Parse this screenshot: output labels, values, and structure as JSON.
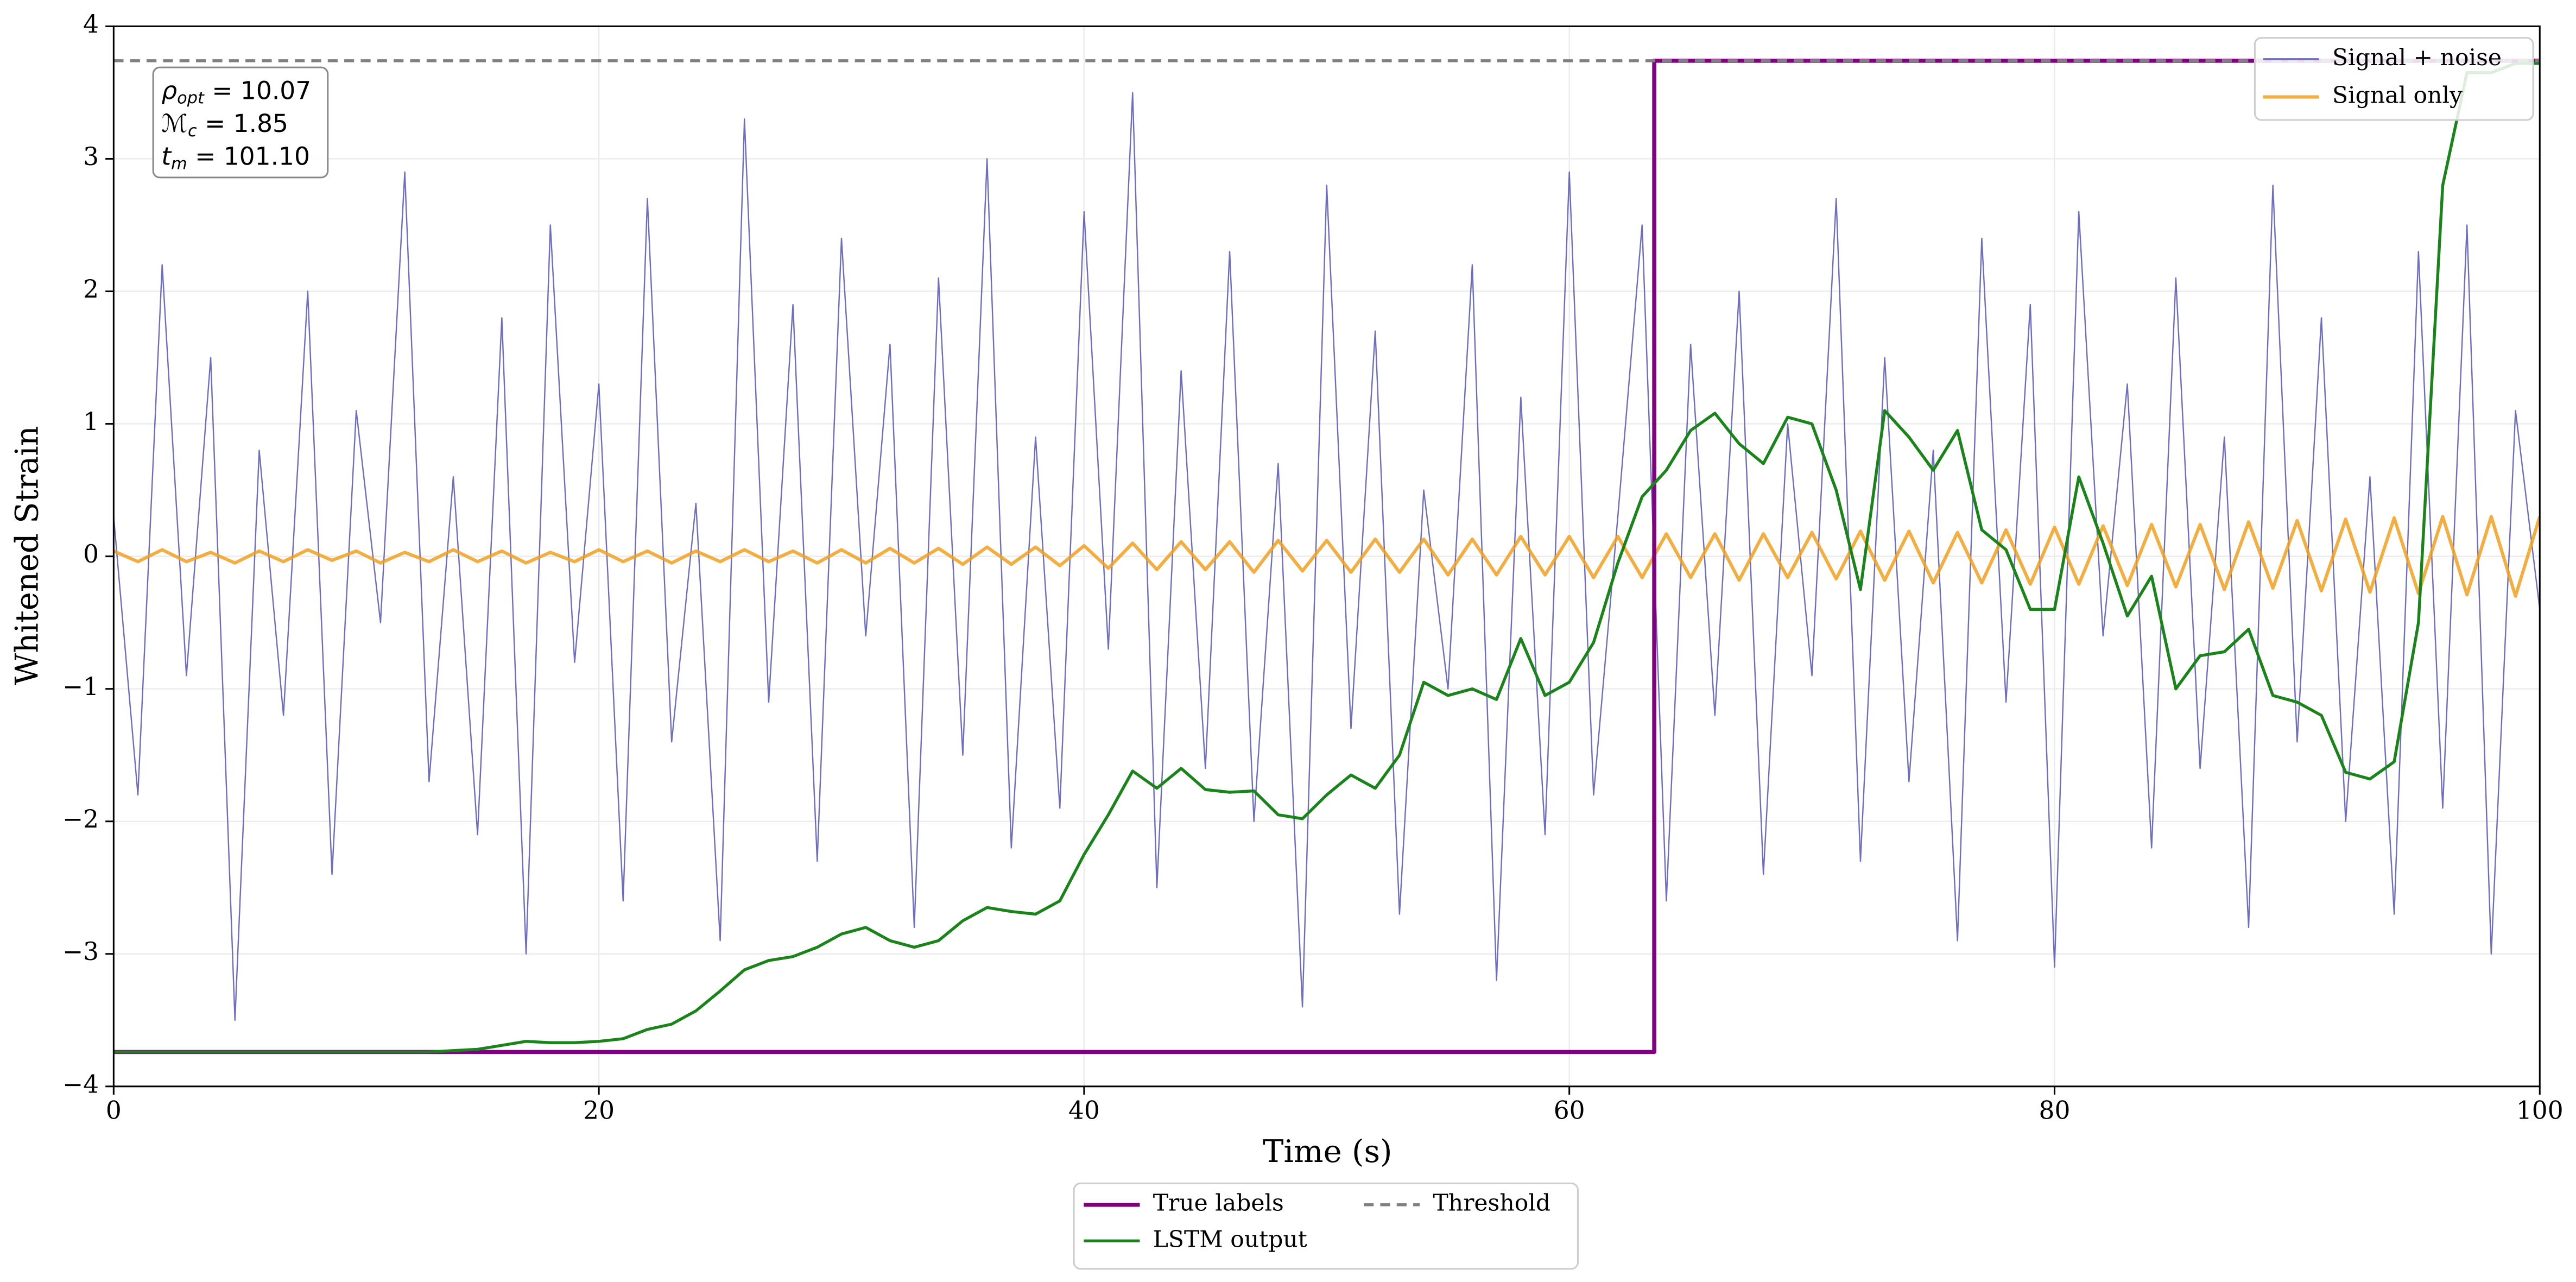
{
  "chart_data": {
    "type": "line",
    "xlabel": "Time (s)",
    "ylabel": "Whitened Strain",
    "xlim": [
      0,
      100
    ],
    "ylim": [
      -4,
      4
    ],
    "xticks": [
      0,
      20,
      40,
      60,
      80,
      100
    ],
    "yticks": [
      {
        "value": -4,
        "label": "−4"
      },
      {
        "value": -3,
        "label": "−3"
      },
      {
        "value": -2,
        "label": "−2"
      },
      {
        "value": -1,
        "label": "−1"
      },
      0,
      1,
      2,
      3,
      4
    ],
    "grid": true,
    "annotation": [
      {
        "symbol": "ρ",
        "subscript": "opt",
        "text": " = 10.07"
      },
      {
        "symbol": "ℳ",
        "subscript": "c",
        "text": " = 1.85"
      },
      {
        "symbol": "t",
        "subscript": "m",
        "text": " = 101.10"
      }
    ],
    "series": [
      {
        "name": "Signal + noise",
        "color": "#5555b5",
        "width": 0.8,
        "opacity": 0.85,
        "legend": "upper right",
        "x": [
          0,
          1,
          2,
          3,
          4,
          5,
          6,
          7,
          8,
          9,
          10,
          11,
          12,
          13,
          14,
          15,
          16,
          17,
          18,
          19,
          20,
          21,
          22,
          23,
          24,
          25,
          26,
          27,
          28,
          29,
          30,
          31,
          32,
          33,
          34,
          35,
          36,
          37,
          38,
          39,
          40,
          41,
          42,
          43,
          44,
          45,
          46,
          47,
          48,
          49,
          50,
          51,
          52,
          53,
          54,
          55,
          56,
          57,
          58,
          59,
          60,
          61,
          62,
          63,
          64,
          65,
          66,
          67,
          68,
          69,
          70,
          71,
          72,
          73,
          74,
          75,
          76,
          77,
          78,
          79,
          80,
          81,
          82,
          83,
          84,
          85,
          86,
          87,
          88,
          89,
          90,
          91,
          92,
          93,
          94,
          95,
          96,
          97,
          98,
          99,
          100
        ],
        "values": [
          0.3,
          -1.8,
          2.2,
          -0.9,
          1.5,
          -3.5,
          0.8,
          -1.2,
          2.0,
          -2.4,
          1.1,
          -0.5,
          2.9,
          -1.7,
          0.6,
          -2.1,
          1.8,
          -3.0,
          2.5,
          -0.8,
          1.3,
          -2.6,
          2.7,
          -1.4,
          0.4,
          -2.9,
          3.3,
          -1.1,
          1.9,
          -2.3,
          2.4,
          -0.6,
          1.6,
          -2.8,
          2.1,
          -1.5,
          3.0,
          -2.2,
          0.9,
          -1.9,
          2.6,
          -0.7,
          3.5,
          -2.5,
          1.4,
          -1.6,
          2.3,
          -2.0,
          0.7,
          -3.4,
          2.8,
          -1.3,
          1.7,
          -2.7,
          0.5,
          -1.0,
          2.2,
          -3.2,
          1.2,
          -2.1,
          2.9,
          -1.8,
          0.3,
          2.5,
          -2.6,
          1.6,
          -1.2,
          2.0,
          -2.4,
          1.0,
          -0.9,
          2.7,
          -2.3,
          1.5,
          -1.7,
          0.8,
          -2.9,
          2.4,
          -1.1,
          1.9,
          -3.1,
          2.6,
          -0.6,
          1.3,
          -2.2,
          2.1,
          -1.6,
          0.9,
          -2.8,
          2.8,
          -1.4,
          1.8,
          -2.0,
          0.6,
          -2.7,
          2.3,
          -1.9,
          2.5,
          -3.0,
          1.1,
          -0.4
        ]
      },
      {
        "name": "Signal only",
        "color": "#f0a020",
        "width": 2,
        "opacity": 0.85,
        "legend": "upper right",
        "x": [
          0,
          1,
          2,
          3,
          4,
          5,
          6,
          7,
          8,
          9,
          10,
          11,
          12,
          13,
          14,
          15,
          16,
          17,
          18,
          19,
          20,
          21,
          22,
          23,
          24,
          25,
          26,
          27,
          28,
          29,
          30,
          31,
          32,
          33,
          34,
          35,
          36,
          37,
          38,
          39,
          40,
          41,
          42,
          43,
          44,
          45,
          46,
          47,
          48,
          49,
          50,
          51,
          52,
          53,
          54,
          55,
          56,
          57,
          58,
          59,
          60,
          61,
          62,
          63,
          64,
          65,
          66,
          67,
          68,
          69,
          70,
          71,
          72,
          73,
          74,
          75,
          76,
          77,
          78,
          79,
          80,
          81,
          82,
          83,
          84,
          85,
          86,
          87,
          88,
          89,
          90,
          91,
          92,
          93,
          94,
          95,
          96,
          97,
          98,
          99,
          100
        ],
        "values": [
          0.04,
          -0.04,
          0.05,
          -0.04,
          0.03,
          -0.05,
          0.04,
          -0.04,
          0.05,
          -0.03,
          0.04,
          -0.05,
          0.03,
          -0.04,
          0.05,
          -0.04,
          0.04,
          -0.05,
          0.03,
          -0.04,
          0.05,
          -0.04,
          0.04,
          -0.05,
          0.04,
          -0.04,
          0.05,
          -0.04,
          0.04,
          -0.05,
          0.05,
          -0.05,
          0.06,
          -0.05,
          0.06,
          -0.06,
          0.07,
          -0.06,
          0.07,
          -0.07,
          0.08,
          -0.09,
          0.1,
          -0.1,
          0.11,
          -0.1,
          0.11,
          -0.12,
          0.12,
          -0.11,
          0.12,
          -0.12,
          0.13,
          -0.12,
          0.13,
          -0.14,
          0.13,
          -0.14,
          0.15,
          -0.14,
          0.15,
          -0.16,
          0.15,
          -0.16,
          0.17,
          -0.16,
          0.17,
          -0.18,
          0.17,
          -0.16,
          0.18,
          -0.17,
          0.19,
          -0.18,
          0.19,
          -0.2,
          0.18,
          -0.2,
          0.2,
          -0.21,
          0.22,
          -0.21,
          0.23,
          -0.22,
          0.24,
          -0.23,
          0.24,
          -0.25,
          0.26,
          -0.24,
          0.27,
          -0.26,
          0.28,
          -0.27,
          0.29,
          -0.28,
          0.3,
          -0.29,
          0.3,
          -0.3,
          0.3
        ]
      },
      {
        "name": "True labels",
        "color": "#800080",
        "width": 2.5,
        "opacity": 1,
        "legend": "below",
        "x": [
          0,
          63.5,
          63.5,
          100
        ],
        "values": [
          -3.74,
          -3.74,
          3.74,
          3.74
        ]
      },
      {
        "name": "LSTM output",
        "color": "#1a841a",
        "width": 1.8,
        "opacity": 1,
        "legend": "below",
        "x": [
          0,
          1,
          2,
          3,
          4,
          5,
          6,
          7,
          8,
          9,
          10,
          11,
          12,
          13,
          14,
          15,
          16,
          17,
          18,
          19,
          20,
          21,
          22,
          23,
          24,
          25,
          26,
          27,
          28,
          29,
          30,
          31,
          32,
          33,
          34,
          35,
          36,
          37,
          38,
          39,
          40,
          41,
          42,
          43,
          44,
          45,
          46,
          47,
          48,
          49,
          50,
          51,
          52,
          53,
          54,
          55,
          56,
          57,
          58,
          59,
          60,
          61,
          62,
          63,
          64,
          65,
          66,
          67,
          68,
          69,
          70,
          71,
          72,
          73,
          74,
          75,
          76,
          77,
          78,
          79,
          80,
          81,
          82,
          83,
          84,
          85,
          86,
          87,
          88,
          89,
          90,
          91,
          92,
          93,
          94,
          95,
          96,
          97,
          98,
          99,
          100
        ],
        "values": [
          -3.74,
          -3.74,
          -3.74,
          -3.74,
          -3.74,
          -3.74,
          -3.74,
          -3.74,
          -3.74,
          -3.74,
          -3.74,
          -3.74,
          -3.74,
          -3.74,
          -3.73,
          -3.72,
          -3.69,
          -3.66,
          -3.67,
          -3.67,
          -3.66,
          -3.64,
          -3.57,
          -3.53,
          -3.43,
          -3.28,
          -3.12,
          -3.05,
          -3.02,
          -2.95,
          -2.85,
          -2.8,
          -2.9,
          -2.95,
          -2.9,
          -2.75,
          -2.65,
          -2.68,
          -2.7,
          -2.6,
          -2.25,
          -1.95,
          -1.62,
          -1.75,
          -1.6,
          -1.76,
          -1.78,
          -1.77,
          -1.95,
          -1.98,
          -1.8,
          -1.65,
          -1.75,
          -1.5,
          -0.95,
          -1.05,
          -1.0,
          -1.08,
          -0.62,
          -1.05,
          -0.95,
          -0.65,
          -0.05,
          0.45,
          0.65,
          0.95,
          1.08,
          0.85,
          0.7,
          1.05,
          1.0,
          0.5,
          -0.25,
          1.1,
          0.9,
          0.65,
          0.95,
          0.2,
          0.05,
          -0.4,
          -0.4,
          0.6,
          0.1,
          -0.45,
          -0.15,
          -1.0,
          -0.75,
          -0.72,
          -0.55,
          -1.05,
          -1.1,
          -1.2,
          -1.63,
          -1.68,
          -1.55,
          -0.5,
          2.8,
          3.65,
          3.65,
          3.72,
          3.72
        ]
      },
      {
        "name": "Threshold",
        "color": "#808080",
        "width": 1.8,
        "opacity": 1,
        "dashed": true,
        "legend": "below",
        "x": [
          0,
          100
        ],
        "values": [
          3.74,
          3.74
        ]
      }
    ]
  }
}
